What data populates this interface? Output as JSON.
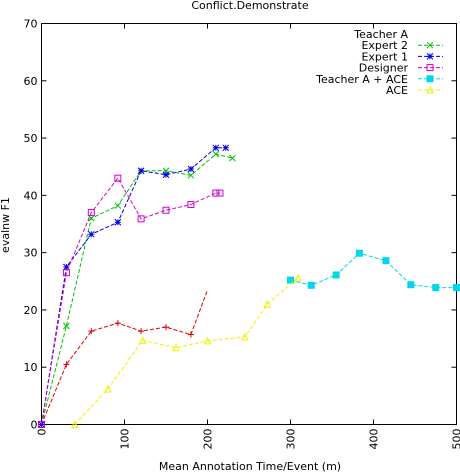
{
  "chart_data": {
    "type": "line",
    "title": "Conflict.Demonstrate",
    "xlabel": "Mean Annotation Time/Event (m)",
    "ylabel": "evalnw F1",
    "xlim": [
      0,
      500
    ],
    "ylim": [
      0,
      70
    ],
    "xticks": [
      0,
      100,
      200,
      300,
      400,
      500
    ],
    "yticks": [
      0,
      10,
      20,
      30,
      40,
      50,
      60,
      70
    ],
    "xtick_labels": [
      "0",
      "100",
      "200",
      "300",
      "400",
      "500"
    ],
    "ytick_labels": [
      "0",
      "10",
      "20",
      "30",
      "40",
      "50",
      "60",
      "70"
    ],
    "grid": false,
    "legend_position": "top-right",
    "series": [
      {
        "name": "Teacher A",
        "color": "#e00000",
        "marker": "plus",
        "x": [
          0,
          30,
          60,
          92,
          120,
          150,
          180
        ],
        "y": [
          0,
          10.5,
          16.3,
          17.7,
          16.3,
          17.0,
          15.7
        ],
        "tail": [
          [
            180,
            15.7
          ],
          [
            200,
            23.5
          ]
        ]
      },
      {
        "name": "Expert 2",
        "color": "#00c000",
        "marker": "x",
        "x": [
          0,
          30,
          60,
          92,
          120,
          150,
          180,
          210,
          230
        ],
        "y": [
          0,
          17.2,
          36.0,
          38.2,
          44.3,
          44.3,
          43.5,
          47.2,
          46.5
        ]
      },
      {
        "name": "Expert 1",
        "color": "#0000e0",
        "marker": "star",
        "x": [
          0,
          30,
          60,
          92,
          120,
          150,
          180,
          210,
          222
        ],
        "y": [
          0,
          27.5,
          33.2,
          35.3,
          44.3,
          43.6,
          44.6,
          48.3,
          48.3
        ]
      },
      {
        "name": "Designer",
        "color": "#d000d0",
        "marker": "square",
        "x": [
          0,
          30,
          60,
          92,
          120,
          150,
          180,
          210,
          215
        ],
        "y": [
          0,
          26.5,
          37.0,
          43.0,
          35.9,
          37.4,
          38.4,
          40.4,
          40.4
        ]
      },
      {
        "name": "Teacher A + ACE",
        "color": "#00d8e8",
        "marker": "filled-square",
        "x": [
          300,
          325,
          355,
          383,
          415,
          445,
          475,
          500
        ],
        "y": [
          25.2,
          24.3,
          26.1,
          29.9,
          28.6,
          24.4,
          23.9,
          23.9
        ]
      },
      {
        "name": "ACE",
        "color": "#f0f000",
        "marker": "triangle",
        "x": [
          40,
          80,
          122,
          162,
          200,
          245,
          272,
          309
        ],
        "y": [
          0,
          6.2,
          14.7,
          13.4,
          14.6,
          15.3,
          21.0,
          25.6
        ]
      }
    ]
  }
}
